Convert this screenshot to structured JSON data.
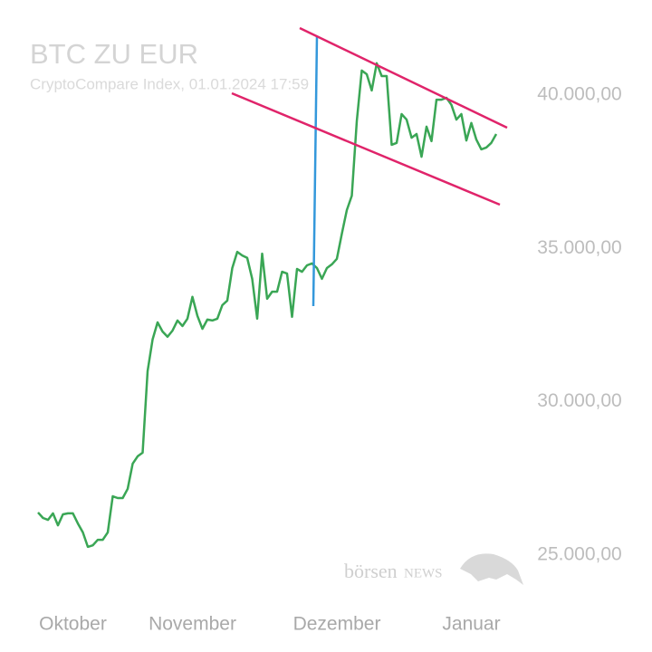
{
  "chart_data": {
    "type": "line",
    "title": "BTC ZU EUR",
    "subtitle": "CryptoCompare Index, 01.01.2024 17:59",
    "watermark": [
      "börsen",
      "NEWS"
    ],
    "color": "#3aa655",
    "values": [
      26390,
      26210,
      26150,
      26360,
      25970,
      26330,
      26360,
      26360,
      26030,
      25740,
      25270,
      25320,
      25500,
      25500,
      25740,
      26920,
      26860,
      26860,
      27160,
      27980,
      28220,
      28340,
      31000,
      32030,
      32590,
      32290,
      32120,
      32320,
      32650,
      32470,
      32710,
      33420,
      32800,
      32380,
      32680,
      32650,
      32710,
      33150,
      33300,
      34360,
      34890,
      34770,
      34690,
      34010,
      32710,
      34830,
      33360,
      33590,
      33590,
      34240,
      34180,
      32770,
      34330,
      34240,
      34450,
      34510,
      34360,
      34010,
      34360,
      34480,
      34660,
      35480,
      36250,
      36720,
      39150,
      40800,
      40680,
      40150,
      41040,
      40620,
      40620,
      38380,
      38440,
      39380,
      39200,
      38610,
      38730,
      37990,
      38970,
      38500,
      39850,
      39850,
      39910,
      39680,
      39200,
      39380,
      38520,
      39090,
      38550,
      38230,
      38290,
      38440,
      38730
    ],
    "xticks": [
      {
        "value": 7,
        "label": "Oktober"
      },
      {
        "value": 31,
        "label": "November"
      },
      {
        "value": 60,
        "label": "Dezember"
      },
      {
        "value": 87,
        "label": "Januar"
      }
    ],
    "ylim": [
      25000,
      40000
    ],
    "yticks": [
      {
        "value": 25000,
        "label": "25.000,00"
      },
      {
        "value": 30000,
        "label": "30.000,00"
      },
      {
        "value": 35000,
        "label": "35.000,00"
      },
      {
        "value": 40000,
        "label": "40.000,00"
      }
    ]
  }
}
